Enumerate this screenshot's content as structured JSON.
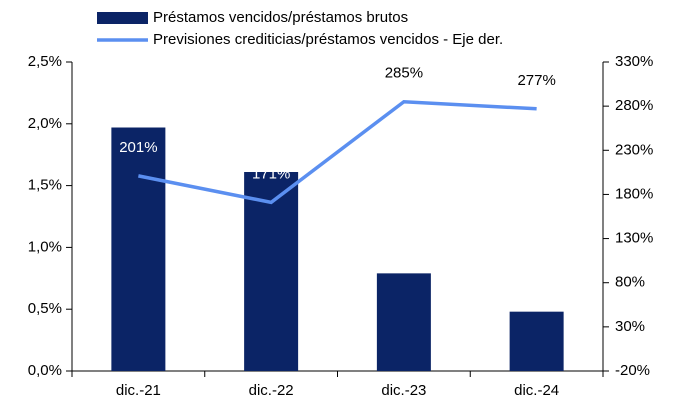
{
  "chart_data": {
    "type": "bar",
    "categories": [
      "dic.-21",
      "dic.-22",
      "dic.-23",
      "dic.-24"
    ],
    "series": [
      {
        "name": "Préstamos vencidos/préstamos brutos",
        "type": "bar",
        "color": "#0b2466",
        "values": [
          1.97,
          1.61,
          0.79,
          0.48
        ]
      },
      {
        "name": "Previsiones crediticias/préstamos vencidos - Eje der.",
        "type": "line",
        "color": "#5b8ff0",
        "axis": "y2",
        "values": [
          201,
          171,
          285,
          277
        ],
        "value_labels": [
          "201%",
          "171%",
          "285%",
          "277%"
        ]
      }
    ],
    "ylim": [
      0,
      2.5
    ],
    "yticks": [
      {
        "value": 0,
        "label": "0,0%"
      },
      {
        "value": 0.5,
        "label": "0,5%"
      },
      {
        "value": 1,
        "label": "1,0%"
      },
      {
        "value": 1.5,
        "label": "1,5%"
      },
      {
        "value": 2,
        "label": "2,0%"
      },
      {
        "value": 2.5,
        "label": "2,5%"
      }
    ],
    "y2lim": [
      -20,
      330
    ],
    "y2ticks": [
      {
        "value": -20,
        "label": "-20%"
      },
      {
        "value": 30,
        "label": "30%"
      },
      {
        "value": 80,
        "label": "80%"
      },
      {
        "value": 130,
        "label": "130%"
      },
      {
        "value": 180,
        "label": "180%"
      },
      {
        "value": 230,
        "label": "230%"
      },
      {
        "value": 280,
        "label": "280%"
      },
      {
        "value": 330,
        "label": "330%"
      }
    ],
    "legend": "top"
  }
}
